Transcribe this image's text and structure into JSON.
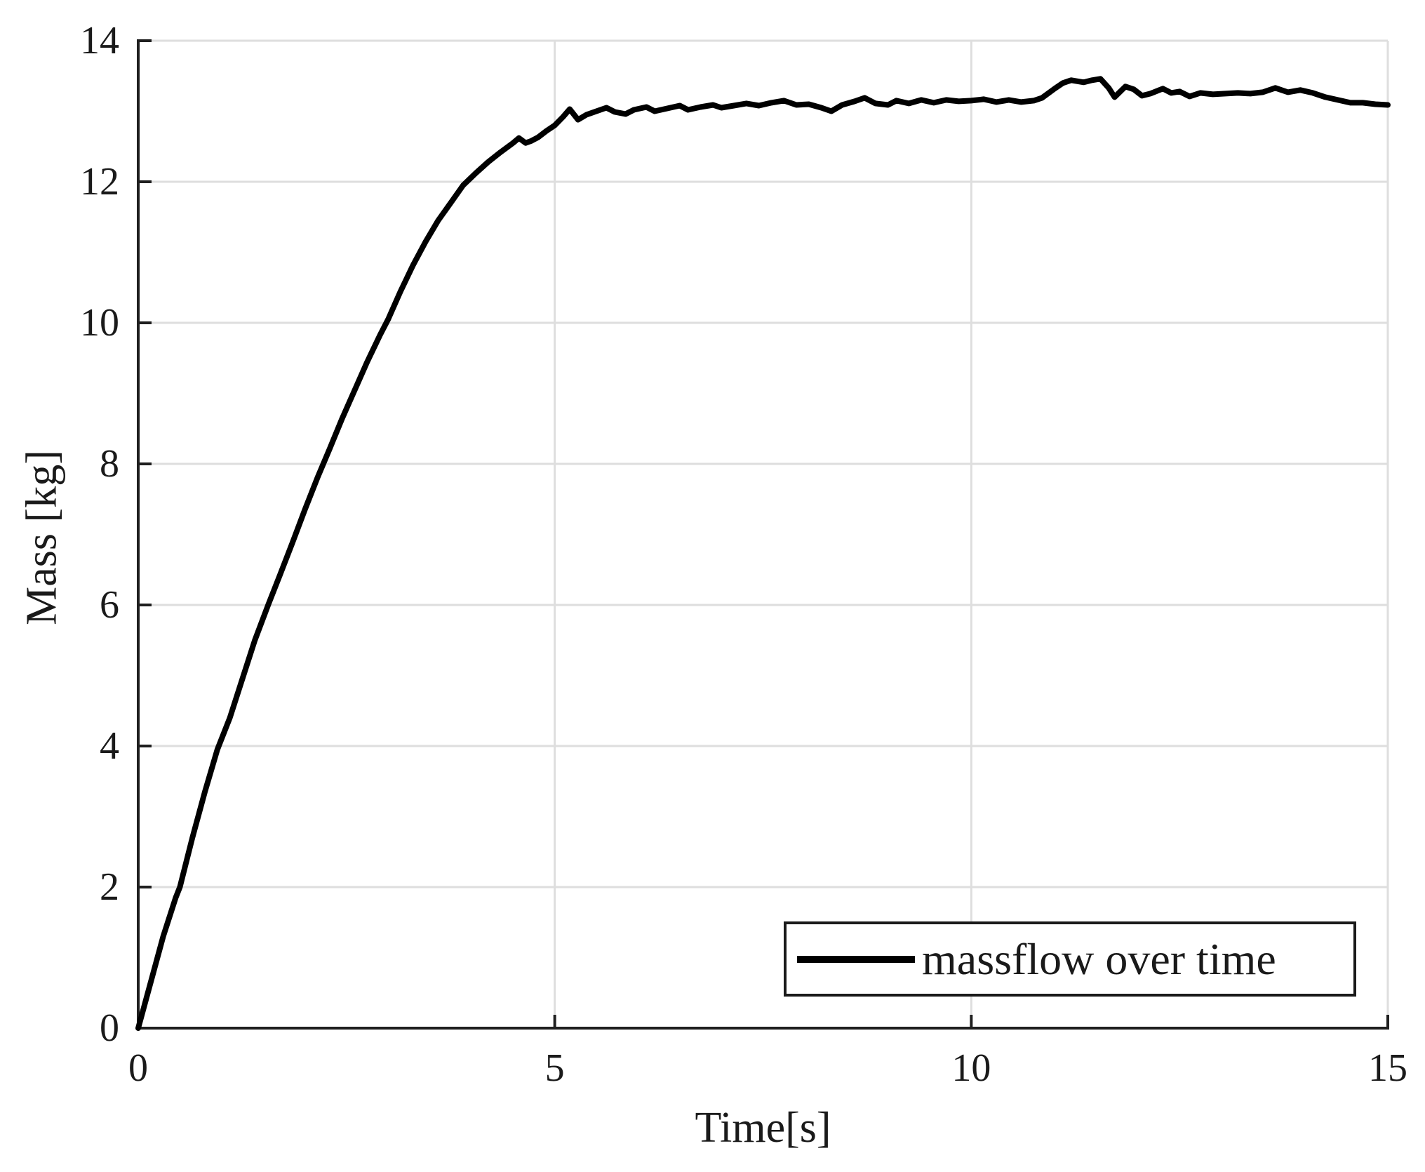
{
  "figure": {
    "background": "#ffffff",
    "axis_color": "#1f1f1f",
    "grid_color": "#dedede",
    "tick_label_color": "#1a1a1a"
  },
  "chart_data": {
    "type": "line",
    "title": "",
    "xlabel": "Time[s]",
    "ylabel": "Mass [kg]",
    "xlim": [
      0,
      15
    ],
    "ylim": [
      0,
      14
    ],
    "xticks": [
      0,
      5,
      10,
      15
    ],
    "yticks": [
      0,
      2,
      4,
      6,
      8,
      10,
      12,
      14
    ],
    "grid": true,
    "legend": {
      "position": "inside-bottom-right",
      "border_color": "#1a1a1a",
      "entries": [
        "massflow over time"
      ]
    },
    "series": [
      {
        "name": "massflow over time",
        "color": "#000000",
        "x": [
          0,
          0.15,
          0.3,
          0.45,
          0.5,
          0.65,
          0.8,
          0.95,
          1.1,
          1.25,
          1.4,
          1.56,
          1.7,
          1.85,
          2.0,
          2.15,
          2.3,
          2.45,
          2.6,
          2.75,
          2.9,
          3.0,
          3.15,
          3.3,
          3.45,
          3.6,
          3.75,
          3.9,
          4.05,
          4.2,
          4.35,
          4.5,
          4.57,
          4.65,
          4.72,
          4.8,
          4.9,
          5.0,
          5.1,
          5.18,
          5.28,
          5.38,
          5.5,
          5.62,
          5.72,
          5.85,
          5.95,
          6.1,
          6.2,
          6.35,
          6.5,
          6.6,
          6.75,
          6.9,
          7.0,
          7.15,
          7.3,
          7.45,
          7.6,
          7.75,
          7.9,
          8.05,
          8.2,
          8.32,
          8.45,
          8.6,
          8.72,
          8.85,
          9.0,
          9.1,
          9.25,
          9.4,
          9.55,
          9.7,
          9.85,
          10.0,
          10.15,
          10.3,
          10.45,
          10.6,
          10.75,
          10.85,
          11.0,
          11.1,
          11.2,
          11.35,
          11.45,
          11.55,
          11.65,
          11.72,
          11.85,
          11.95,
          12.05,
          12.15,
          12.3,
          12.4,
          12.5,
          12.62,
          12.75,
          12.9,
          13.05,
          13.2,
          13.35,
          13.5,
          13.65,
          13.8,
          13.95,
          14.1,
          14.25,
          14.4,
          14.55,
          14.7,
          14.85,
          15.0
        ],
        "y": [
          0,
          0.65,
          1.3,
          1.85,
          2.0,
          2.7,
          3.35,
          3.95,
          4.4,
          4.95,
          5.5,
          6.0,
          6.42,
          6.88,
          7.35,
          7.8,
          8.22,
          8.65,
          9.05,
          9.45,
          9.82,
          10.05,
          10.45,
          10.82,
          11.15,
          11.45,
          11.7,
          11.95,
          12.12,
          12.28,
          12.42,
          12.55,
          12.62,
          12.55,
          12.58,
          12.63,
          12.72,
          12.8,
          12.92,
          13.03,
          12.88,
          12.95,
          13.0,
          13.05,
          12.99,
          12.96,
          13.02,
          13.06,
          13.0,
          13.04,
          13.08,
          13.02,
          13.06,
          13.09,
          13.05,
          13.08,
          13.11,
          13.08,
          13.12,
          13.15,
          13.09,
          13.1,
          13.05,
          13.0,
          13.09,
          13.14,
          13.19,
          13.11,
          13.09,
          13.15,
          13.11,
          13.16,
          13.12,
          13.16,
          13.14,
          13.15,
          13.17,
          13.13,
          13.16,
          13.13,
          13.15,
          13.19,
          13.32,
          13.4,
          13.44,
          13.41,
          13.44,
          13.46,
          13.33,
          13.2,
          13.35,
          13.31,
          13.22,
          13.25,
          13.32,
          13.26,
          13.28,
          13.21,
          13.26,
          13.24,
          13.25,
          13.26,
          13.25,
          13.27,
          13.33,
          13.27,
          13.3,
          13.26,
          13.2,
          13.16,
          13.12,
          13.12,
          13.1,
          13.09
        ]
      }
    ]
  }
}
